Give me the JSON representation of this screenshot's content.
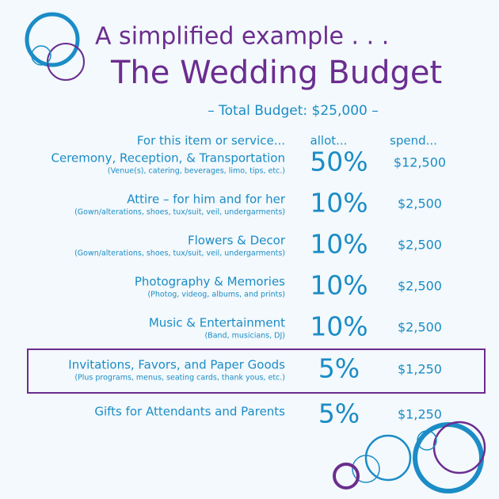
{
  "header": {
    "subtitle": "A  simplified example . . .",
    "title": "The Wedding Budget",
    "total": "– Total Budget:  $25,000 –"
  },
  "table": {
    "columns": [
      "For this item or service...",
      "allot...",
      "spend..."
    ],
    "rows": [
      {
        "item": "Ceremony, Reception, & Transportation",
        "note": "(Venue(s), catering, beverages, limo, tips, etc.)",
        "allot": "50%",
        "spend": "$12,500"
      },
      {
        "item": "Attire – for him and for her",
        "note": "(Gown/alterations, shoes, tux/suit, veil, undergarments)",
        "allot": "10%",
        "spend": "$2,500"
      },
      {
        "item": "Flowers & Decor",
        "note": "(Gown/alterations, shoes, tux/suit, veil, undergarments)",
        "allot": "10%",
        "spend": "$2,500"
      },
      {
        "item": "Photography & Memories",
        "note": "(Photog, videog, albums, and prints)",
        "allot": "10%",
        "spend": "$2,500"
      },
      {
        "item": "Music & Entertainment",
        "note": "(Band, musicians, DJ)",
        "allot": "10%",
        "spend": "$2,500"
      },
      {
        "item": "Invitations, Favors, and Paper Goods",
        "note": "(Plus programs, menus, seating cards, thank yous, etc.)",
        "allot": "5%",
        "spend": "$1,250"
      },
      {
        "item": "Gifts for Attendants and Parents",
        "allot": "5%",
        "spend": "$1,250"
      }
    ]
  }
}
